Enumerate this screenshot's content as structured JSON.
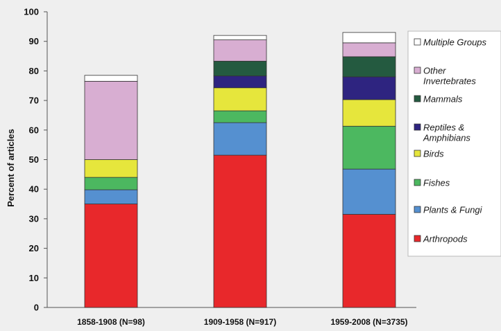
{
  "chart_data": {
    "type": "bar",
    "stacked": true,
    "title": "",
    "xlabel": "",
    "ylabel": "Percent of articles",
    "ylim": [
      0,
      100
    ],
    "yticks": [
      0,
      10,
      20,
      30,
      40,
      50,
      60,
      70,
      80,
      90,
      100
    ],
    "categories": [
      "1858-1908 (N=98)",
      "1909-1958 (N=917)",
      "1959-2008 (N=3735)"
    ],
    "grid": false,
    "legend_position": "right",
    "series": [
      {
        "name": "Arthropods",
        "color": "#e8282b",
        "values": [
          35,
          51.5,
          31.5
        ]
      },
      {
        "name": "Plants & Fungi",
        "color": "#5590d0",
        "values": [
          4.8,
          11,
          15.3
        ]
      },
      {
        "name": "Fishes",
        "color": "#4cb860",
        "values": [
          4.2,
          4,
          14.5
        ]
      },
      {
        "name": "Birds",
        "color": "#e6e63c",
        "values": [
          6,
          7.8,
          9
        ]
      },
      {
        "name": "Reptiles & Amphibians",
        "color": "#2e2480",
        "values": [
          0,
          4,
          7.7
        ]
      },
      {
        "name": "Mammals",
        "color": "#245a40",
        "values": [
          0,
          5,
          6.8
        ]
      },
      {
        "name": "Other Invertebrates",
        "color": "#d8aed2",
        "values": [
          26.5,
          7.2,
          4.7
        ]
      },
      {
        "name": "Multiple Groups",
        "color": "#ffffff",
        "values": [
          2,
          1.5,
          3.5
        ]
      }
    ],
    "legend_order": [
      "Multiple Groups",
      "Other Invertebrates",
      "Mammals",
      "Reptiles & Amphibians",
      "Birds",
      "Fishes",
      "Plants & Fungi",
      "Arthropods"
    ],
    "legend_text": {
      "Multiple Groups": [
        "Multiple Groups"
      ],
      "Other Invertebrates": [
        "Other",
        "Invertebrates"
      ],
      "Mammals": [
        "Mammals"
      ],
      "Reptiles & Amphibians": [
        "Reptiles &",
        "Amphibians"
      ],
      "Birds": [
        "Birds"
      ],
      "Fishes": [
        "Fishes"
      ],
      "Plants & Fungi": [
        "Plants & Fungi"
      ],
      "Arthropods": [
        "Arthropods"
      ]
    }
  }
}
